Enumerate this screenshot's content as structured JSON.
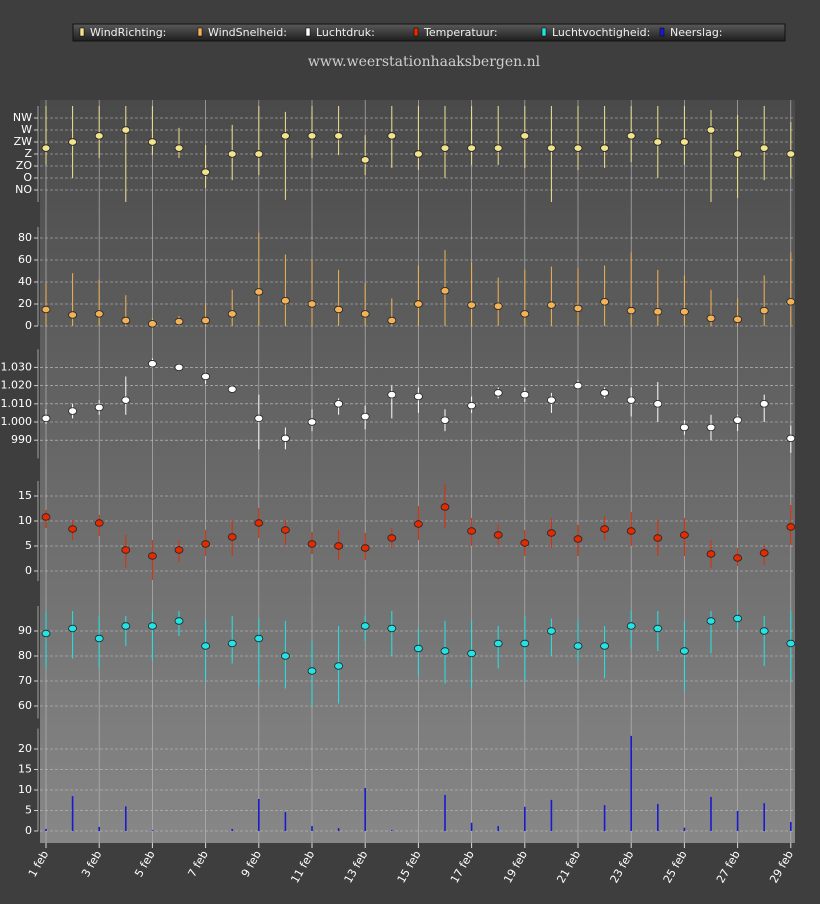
{
  "chart_data": [
    {
      "type": "errorbar",
      "subtitle": "www.weerstationhaaksbergen.nl",
      "series": [
        {
          "name": "WindRichting:",
          "color": "#f2e38e",
          "values": [
            202,
            225,
            248,
            270,
            225,
            202,
            112,
            180,
            180,
            248,
            248,
            248,
            158,
            248,
            180,
            202,
            202,
            202,
            248,
            202,
            202,
            202,
            248,
            225,
            225,
            270,
            180,
            202,
            180
          ],
          "low": [
            139,
            90,
            165,
            0,
            176,
            165,
            52,
            82,
            101,
            8,
            165,
            176,
            101,
            128,
            120,
            90,
            139,
            139,
            128,
            0,
            120,
            128,
            150,
            90,
            139,
            0,
            15,
            82,
            90
          ],
          "high": [
            360,
            360,
            360,
            360,
            360,
            278,
            214,
            289,
            360,
            338,
            360,
            360,
            251,
            360,
            360,
            360,
            360,
            360,
            360,
            360,
            360,
            360,
            360,
            360,
            360,
            345,
            326,
            360,
            300
          ]
        }
      ],
      "ylim": [
        0,
        360
      ],
      "yticks": [
        {
          "value": 45,
          "label": "NO"
        },
        {
          "value": 90,
          "label": "O"
        },
        {
          "value": 135,
          "label": "ZO"
        },
        {
          "value": 180,
          "label": "Z"
        },
        {
          "value": 225,
          "label": "ZW"
        },
        {
          "value": 270,
          "label": "W"
        },
        {
          "value": 315,
          "label": "NW"
        }
      ],
      "grid": true
    },
    {
      "type": "errorbar",
      "series": [
        {
          "name": "WindSnelheid:",
          "color": "#f3b257",
          "values": [
            15,
            10,
            11,
            5,
            2,
            4,
            5,
            11,
            31,
            23,
            20,
            15,
            11,
            5,
            20,
            32,
            19,
            18,
            11,
            19,
            16,
            22,
            14,
            13,
            13,
            7,
            6,
            14,
            22
          ],
          "low": [
            0,
            0,
            0,
            0,
            0,
            0,
            0,
            0,
            0,
            0,
            0,
            0,
            0,
            0,
            0,
            0,
            0,
            0,
            0,
            0,
            0,
            0,
            0,
            0,
            0,
            0,
            0,
            0,
            0
          ],
          "high": [
            39,
            48,
            42,
            28,
            7,
            9,
            21,
            33,
            85,
            65,
            60,
            51,
            39,
            25,
            55,
            69,
            58,
            44,
            51,
            54,
            53,
            55,
            67,
            51,
            46,
            33,
            25,
            46,
            67
          ]
        }
      ],
      "ylim": [
        0,
        90
      ],
      "yticks": [
        0,
        20,
        40,
        60,
        80
      ],
      "grid": true
    },
    {
      "type": "errorbar",
      "series": [
        {
          "name": "Luchtdruk:",
          "color": "#ffffff",
          "values": [
            1002,
            1006,
            1008,
            1012,
            1032,
            1030,
            1025,
            1018,
            1002,
            991,
            1000,
            1010,
            1003,
            1015,
            1014,
            1001,
            1009,
            1016,
            1015,
            1012,
            1020,
            1016,
            1012,
            1010,
            997,
            997,
            1001,
            1010,
            991
          ],
          "low": [
            999,
            1002,
            1004,
            1004,
            1030,
            1029,
            1021,
            1016,
            985,
            985,
            995,
            1004,
            996,
            1002,
            1005,
            995,
            1005,
            1013,
            1011,
            1005,
            1018,
            1013,
            1003,
            1000,
            993,
            990,
            995,
            1000,
            983
          ],
          "high": [
            1007,
            1010,
            1012,
            1025,
            1035,
            1032,
            1027,
            1020,
            1015,
            997,
            1007,
            1013,
            1009,
            1020,
            1019,
            1007,
            1014,
            1019,
            1019,
            1016,
            1023,
            1019,
            1019,
            1022,
            1001,
            1004,
            1004,
            1015,
            998
          ]
        }
      ],
      "ylim": [
        980,
        1040
      ],
      "yticks": [
        990,
        {
          "value": 1000,
          "label": "1.000"
        },
        {
          "value": 1010,
          "label": "1.010"
        },
        {
          "value": 1020,
          "label": "1.020"
        },
        {
          "value": 1030,
          "label": "1.030"
        }
      ],
      "grid": true
    },
    {
      "type": "errorbar",
      "series": [
        {
          "name": "Temperatuur:",
          "color": "#e52a00",
          "values": [
            10.8,
            8.4,
            9.6,
            4.2,
            3,
            4.2,
            5.4,
            6.8,
            9.6,
            8.2,
            5.4,
            5,
            4.6,
            6.6,
            9.4,
            12.8,
            8,
            7.2,
            5.6,
            7.6,
            6.4,
            8.4,
            8,
            6.6,
            7.2,
            3.4,
            2.6,
            3.6,
            8.8
          ],
          "low": [
            8.6,
            6.2,
            7,
            0.6,
            -1.8,
            1.8,
            3,
            3,
            6.6,
            5.2,
            3.4,
            2.2,
            2.2,
            4.6,
            6.2,
            8.6,
            5,
            5.2,
            3,
            4.6,
            3,
            6.2,
            5,
            3,
            3,
            0.6,
            1,
            1.2,
            5.2
          ],
          "high": [
            12.2,
            10.2,
            11.2,
            7.2,
            6.2,
            6.2,
            8.2,
            10.2,
            12.6,
            10.2,
            7.8,
            8.2,
            7.6,
            8.6,
            13,
            17.4,
            10.6,
            9.2,
            8.2,
            10.6,
            9.2,
            11,
            11.8,
            10.2,
            10.6,
            6.2,
            4.6,
            5.2,
            13.2
          ]
        }
      ],
      "ylim": [
        -2,
        18
      ],
      "yticks": [
        0,
        5,
        10,
        15
      ],
      "grid": true
    },
    {
      "type": "errorbar",
      "series": [
        {
          "name": "Luchtvochtigheid:",
          "color": "#22e4e6",
          "values": [
            89,
            91,
            87,
            92,
            92,
            94,
            84,
            85,
            87,
            80,
            74,
            76,
            92,
            91,
            83,
            82,
            81,
            85,
            85,
            90,
            84,
            84,
            92,
            91,
            82,
            94,
            95,
            90,
            85
          ],
          "low": [
            75,
            79,
            75,
            84,
            78,
            88,
            70,
            77,
            68,
            67,
            60,
            61,
            86,
            80,
            72,
            69,
            67,
            75,
            70,
            80,
            78,
            71,
            83,
            82,
            66,
            81,
            91,
            76,
            70
          ],
          "high": [
            98,
            98,
            96,
            96,
            98,
            98,
            94,
            96,
            95,
            94,
            86,
            92,
            96,
            98,
            91,
            94,
            94,
            92,
            96,
            95,
            94,
            92,
            98,
            98,
            94,
            98,
            98,
            96,
            98
          ]
        }
      ],
      "ylim": [
        55,
        100
      ],
      "yticks": [
        60,
        70,
        80,
        90
      ],
      "grid": true
    },
    {
      "type": "bar",
      "categories": [
        "1 feb",
        null,
        "3 feb",
        null,
        "5 feb",
        null,
        "7 feb",
        null,
        "9 feb",
        null,
        "11 feb",
        null,
        "13 feb",
        null,
        "15 feb",
        null,
        "17 feb",
        null,
        "19 feb",
        null,
        "21 feb",
        null,
        "23 feb",
        null,
        "25 feb",
        null,
        "27 feb",
        null,
        "29 feb"
      ],
      "series": [
        {
          "name": "Neerslag:",
          "color": "#1a1ad0",
          "values": [
            0.5,
            8.5,
            1,
            6,
            0.2,
            0,
            0,
            0.5,
            7.8,
            4.6,
            1.2,
            0.7,
            10.5,
            0.2,
            0,
            8.8,
            2,
            1.2,
            5.9,
            7.6,
            0,
            6.3,
            23.2,
            6.6,
            0.8,
            8.3,
            4.9,
            6.8,
            2.2
          ]
        }
      ],
      "ylim": [
        0,
        25
      ],
      "yticks": [
        0,
        5,
        10,
        15,
        20
      ],
      "grid": true
    }
  ]
}
